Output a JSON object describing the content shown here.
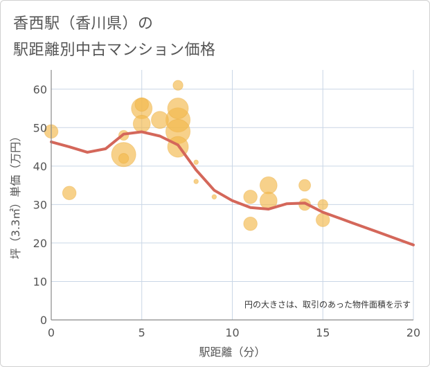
{
  "title": {
    "line1": "香西駅（香川県）の",
    "line2": "駅距離別中古マンション価格"
  },
  "chart_data": {
    "type": "scatter",
    "title": "香西駅（香川県）の駅距離別中古マンション価格",
    "xlabel": "駅距離（分）",
    "ylabel": "坪（3.3㎡）単価（万円）",
    "xlim": [
      0,
      20
    ],
    "ylim": [
      0,
      65
    ],
    "x_ticks": [
      0,
      5,
      10,
      15,
      20
    ],
    "y_ticks": [
      0,
      10,
      20,
      30,
      40,
      50,
      60
    ],
    "grid": true,
    "note": "円の大きさは、取引のあった物件面積を示す",
    "colors": {
      "bubble": "#f2b84b",
      "trend": "#d4675a",
      "grid": "#c9d6e6",
      "axis": "#888888"
    },
    "points": [
      {
        "x": 0,
        "y": 49,
        "size": 3
      },
      {
        "x": 1,
        "y": 33,
        "size": 3
      },
      {
        "x": 4,
        "y": 43,
        "size": 6
      },
      {
        "x": 4,
        "y": 42,
        "size": 2
      },
      {
        "x": 4,
        "y": 48,
        "size": 2
      },
      {
        "x": 5,
        "y": 56,
        "size": 3
      },
      {
        "x": 5,
        "y": 55,
        "size": 5
      },
      {
        "x": 5,
        "y": 51,
        "size": 4
      },
      {
        "x": 6,
        "y": 52,
        "size": 4
      },
      {
        "x": 7,
        "y": 61,
        "size": 2
      },
      {
        "x": 7,
        "y": 55,
        "size": 5
      },
      {
        "x": 7,
        "y": 52,
        "size": 6
      },
      {
        "x": 7,
        "y": 49,
        "size": 6
      },
      {
        "x": 7,
        "y": 45,
        "size": 5
      },
      {
        "x": 8,
        "y": 41,
        "size": 0.5
      },
      {
        "x": 8,
        "y": 36,
        "size": 0.5
      },
      {
        "x": 9,
        "y": 32,
        "size": 0.5
      },
      {
        "x": 11,
        "y": 32,
        "size": 3
      },
      {
        "x": 11,
        "y": 25,
        "size": 3
      },
      {
        "x": 12,
        "y": 35,
        "size": 4
      },
      {
        "x": 12,
        "y": 31,
        "size": 4
      },
      {
        "x": 14,
        "y": 35,
        "size": 2.5
      },
      {
        "x": 14,
        "y": 30,
        "size": 2.5
      },
      {
        "x": 15,
        "y": 30,
        "size": 2
      },
      {
        "x": 15,
        "y": 26,
        "size": 3
      }
    ],
    "trend": {
      "x": [
        0,
        1,
        2,
        3,
        4,
        5,
        6,
        7,
        8,
        9,
        10,
        11,
        12,
        13,
        14,
        15,
        16,
        17,
        18,
        19,
        20
      ],
      "y": [
        46.3,
        45,
        43.6,
        44.5,
        48.3,
        48.9,
        47.8,
        45.5,
        39,
        33.7,
        31,
        29.2,
        28.8,
        30.2,
        30.4,
        28,
        26.3,
        24.6,
        22.9,
        21.2,
        19.5
      ]
    }
  }
}
